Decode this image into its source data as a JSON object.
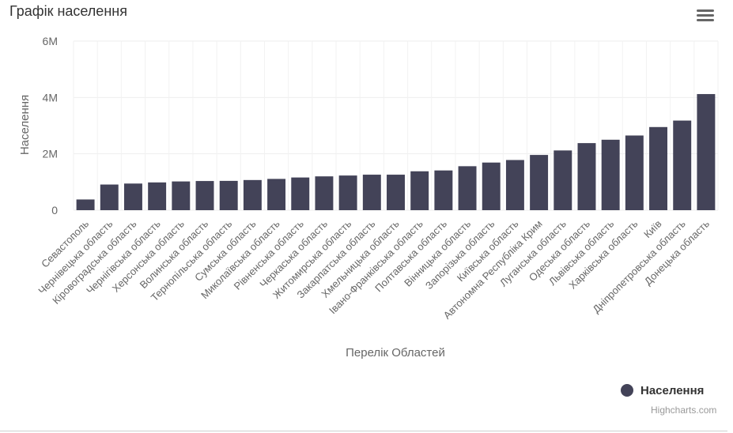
{
  "chart": {
    "title": "Графік населення",
    "credits": "Highcharts.com",
    "series_color": "#434358"
  },
  "chart_data": {
    "type": "bar",
    "title": "Графік населення",
    "xlabel": "Перелік Областей",
    "ylabel": "Населення",
    "ylim": [
      0,
      6000000
    ],
    "yticks": [
      0,
      2000000,
      4000000,
      6000000
    ],
    "ytick_labels": [
      "0",
      "2M",
      "4M",
      "6M"
    ],
    "grid": true,
    "legend": "bottom-right",
    "categories": [
      "Севастополь",
      "Чернівецька область",
      "Кіровоградська область",
      "Чернігівська область",
      "Херсонська область",
      "Волинська область",
      "Тернопільська область",
      "Сумська область",
      "Миколаївська область",
      "Рівненська область",
      "Черкаська область",
      "Житомирська область",
      "Закарпатська область",
      "Хмельницька область",
      "Івано-Франківська область",
      "Полтавська область",
      "Вінницька область",
      "Запорізька область",
      "Київська область",
      "Автономна Республіка Крим",
      "Луганська область",
      "Одеська область",
      "Львівська область",
      "Харківська область",
      "Київ",
      "Дніпропетровська область",
      "Донецька область"
    ],
    "series": [
      {
        "name": "Населення",
        "color": "#434358",
        "values": [
          380000,
          910000,
          945000,
          985000,
          1020000,
          1035000,
          1040000,
          1070000,
          1110000,
          1160000,
          1200000,
          1230000,
          1260000,
          1260000,
          1380000,
          1410000,
          1560000,
          1690000,
          1780000,
          1960000,
          2120000,
          2380000,
          2500000,
          2650000,
          2950000,
          3180000,
          4120000
        ]
      }
    ]
  }
}
